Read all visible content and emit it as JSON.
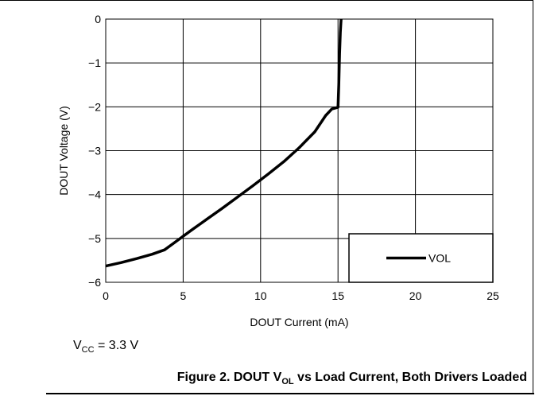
{
  "chart_data": {
    "type": "line",
    "xlabel": "DOUT Current (mA)",
    "ylabel": "DOUT Voltage (V)",
    "xlim": [
      0,
      25
    ],
    "ylim": [
      -6,
      0
    ],
    "xticks": [
      "0",
      "5",
      "10",
      "15",
      "20",
      "25"
    ],
    "yticks": [
      "0",
      "−1",
      "−2",
      "−3",
      "−4",
      "−5",
      "−6"
    ],
    "grid": true,
    "legend_position": "bottom-right",
    "series": [
      {
        "name": "VOL",
        "color": "#000000",
        "x": [
          0,
          1,
          2,
          3,
          3.8,
          4.5,
          5.5,
          6.5,
          7.5,
          8.5,
          9.5,
          10.5,
          11.5,
          12.5,
          13.5,
          14.2,
          14.6,
          15.0,
          15.05,
          15.1,
          15.15,
          15.2
        ],
        "y": [
          -5.63,
          -5.55,
          -5.46,
          -5.36,
          -5.26,
          -5.08,
          -4.82,
          -4.57,
          -4.32,
          -4.06,
          -3.8,
          -3.53,
          -3.25,
          -2.93,
          -2.57,
          -2.2,
          -2.05,
          -2.01,
          -1.5,
          -0.8,
          -0.3,
          0
        ]
      }
    ]
  },
  "note": {
    "prefix": "V",
    "sub": "CC",
    "suffix": " = 3.3 V"
  },
  "caption": {
    "prefix": "Figure 2. DOUT V",
    "sub": "OL",
    "suffix": " vs Load Current, Both Drivers Loaded"
  }
}
